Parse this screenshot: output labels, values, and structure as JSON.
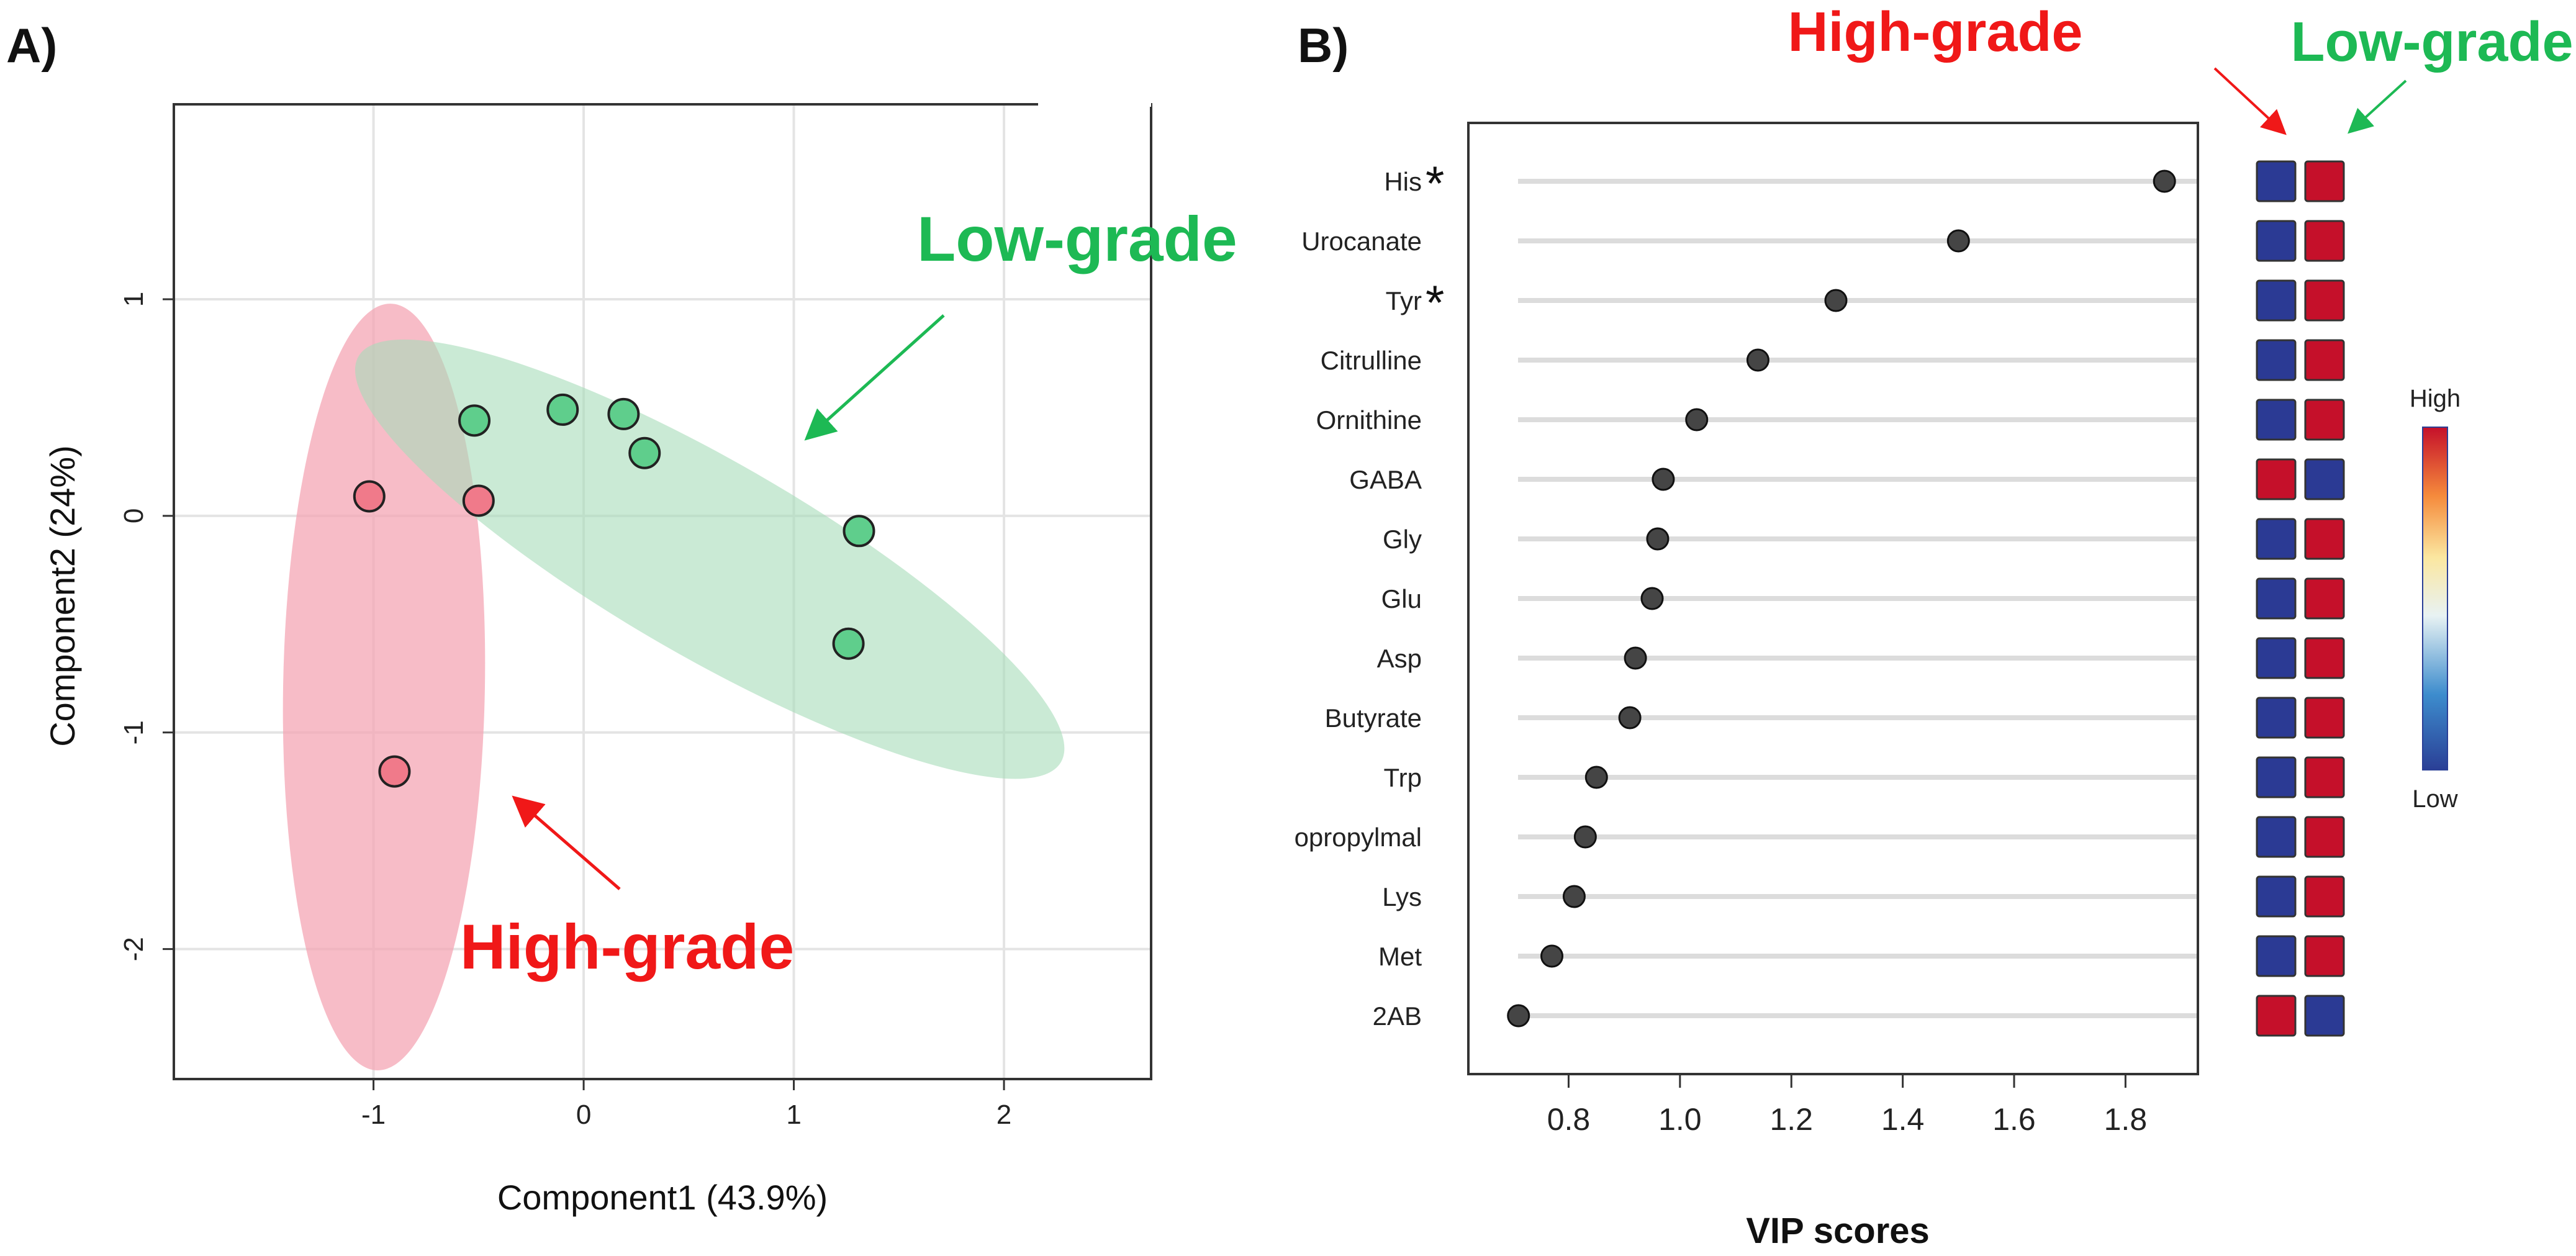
{
  "panel_a": {
    "label": "A)",
    "xlabel": "Component1 (43.9%)",
    "ylabel": "Component2 (24%)",
    "colors": {
      "high": "#f07a8a",
      "low": "#5fce8c",
      "high_fill": "#f4a6b4",
      "low_fill": "#a7dcb9",
      "high_text": "#f01818",
      "low_text": "#1db954"
    },
    "annotation_high": "High-grade",
    "annotation_low": "Low-grade"
  },
  "panel_b": {
    "label": "B)",
    "xlabel": "VIP scores",
    "header_high": "High-grade",
    "header_low": "Low-grade",
    "legend_high": "High",
    "legend_low": "Low",
    "star": "*"
  },
  "chart_data": [
    {
      "type": "scatter",
      "title": "",
      "xlabel": "Component1 (43.9%)",
      "ylabel": "Component2 (24%)",
      "xlim": [
        -1.95,
        2.7
      ],
      "ylim": [
        -2.6,
        1.9
      ],
      "xticks": [
        -1,
        0,
        1,
        2
      ],
      "yticks": [
        1,
        0,
        -1,
        -2
      ],
      "xtick_labels": [
        "-1",
        "0",
        "1",
        "2"
      ],
      "ytick_labels": [
        "1",
        "0",
        "-1",
        "-2"
      ],
      "grid": true,
      "series": [
        {
          "name": "High-grade",
          "color": "#f07a8a",
          "x": [
            -1.02,
            -0.5,
            -0.9
          ],
          "y": [
            0.09,
            0.07,
            -1.18
          ]
        },
        {
          "name": "Low-grade",
          "color": "#5fce8c",
          "x": [
            -0.52,
            -0.1,
            0.19,
            0.29,
            1.31,
            1.26
          ],
          "y": [
            0.44,
            0.49,
            0.47,
            0.29,
            -0.07,
            -0.59
          ]
        }
      ],
      "ellipses": [
        {
          "series": "High-grade",
          "center": [
            -0.95,
            -0.79
          ],
          "rx": 0.48,
          "ry": 1.77,
          "angle_deg": 1
        },
        {
          "series": "Low-grade",
          "center": [
            0.6,
            -0.2
          ],
          "rx": 1.93,
          "ry": 0.45,
          "angle_deg": 30
        }
      ]
    },
    {
      "type": "dot",
      "xlabel": "VIP scores",
      "xlim": [
        0.62,
        1.93
      ],
      "xticks": [
        0.8,
        1.0,
        1.2,
        1.4,
        1.6,
        1.8
      ],
      "xtick_labels": [
        "0.8",
        "1.0",
        "1.2",
        "1.4",
        "1.6",
        "1.8"
      ],
      "categories": [
        "His",
        "Urocanate",
        "Tyr",
        "Citrulline",
        "Ornithine",
        "GABA",
        "Gly",
        "Glu",
        "Asp",
        "Butyrate",
        "Trp",
        "opropylmal",
        "Lys",
        "Met",
        "2AB"
      ],
      "starred": [
        true,
        false,
        true,
        false,
        false,
        false,
        false,
        false,
        false,
        false,
        false,
        false,
        false,
        false,
        false
      ],
      "values": [
        1.87,
        1.5,
        1.28,
        1.14,
        1.03,
        0.97,
        0.96,
        0.95,
        0.92,
        0.91,
        0.85,
        0.83,
        0.81,
        0.77,
        0.71
      ],
      "heatmap": {
        "columns": [
          "High-grade",
          "Low-grade"
        ],
        "cells": [
          [
            "low",
            "high"
          ],
          [
            "low",
            "high"
          ],
          [
            "low",
            "high"
          ],
          [
            "low",
            "high"
          ],
          [
            "low",
            "high"
          ],
          [
            "high",
            "low"
          ],
          [
            "low",
            "high"
          ],
          [
            "low",
            "high"
          ],
          [
            "low",
            "high"
          ],
          [
            "low",
            "high"
          ],
          [
            "low",
            "high"
          ],
          [
            "low",
            "high"
          ],
          [
            "low",
            "high"
          ],
          [
            "low",
            "high"
          ],
          [
            "high",
            "low"
          ]
        ],
        "color_high": "#c5102a",
        "color_low": "#2b3a94"
      }
    }
  ]
}
